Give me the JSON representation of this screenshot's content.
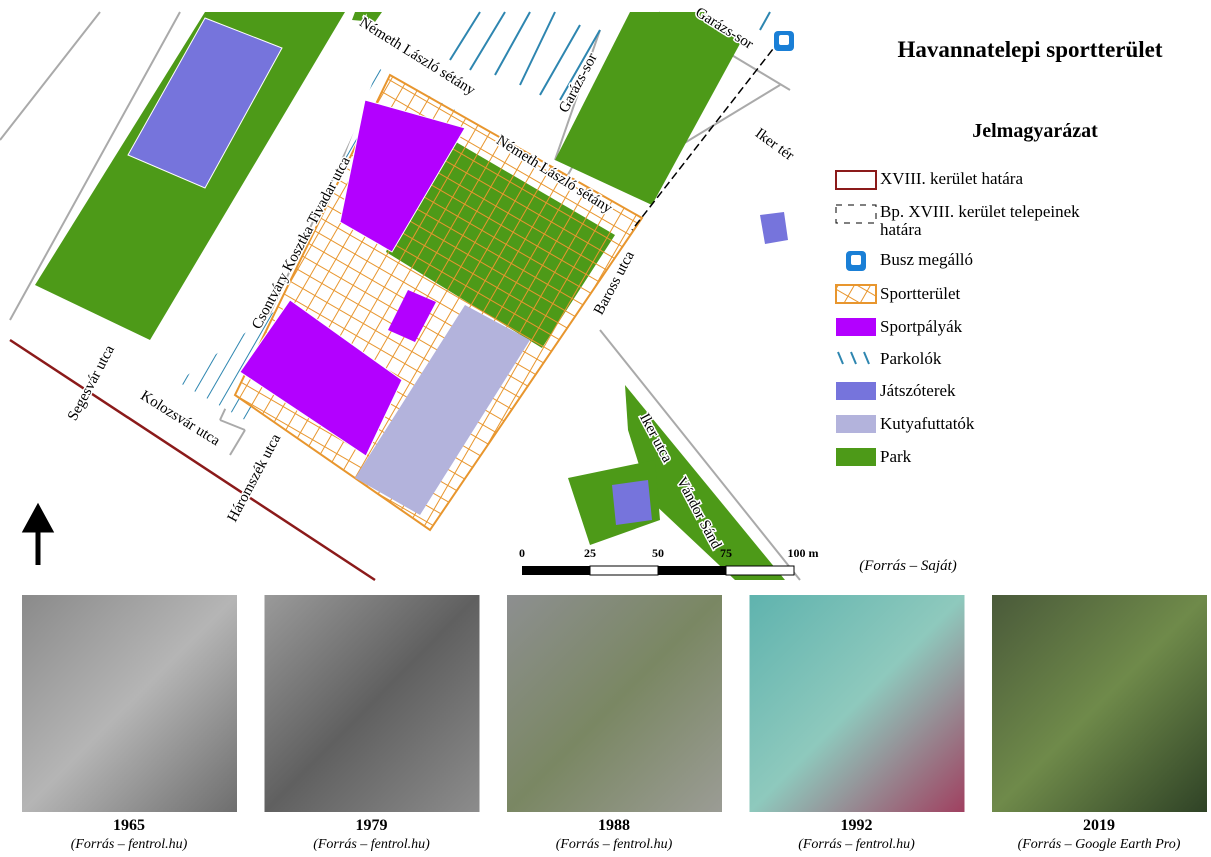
{
  "title": "Havannatelepi sportterület",
  "legend": {
    "title": "Jelmagyarázat",
    "items": [
      {
        "label": "XVIII. kerület határa"
      },
      {
        "label": "Bp. XVIII. kerület telepeinek határa"
      },
      {
        "label": "Busz megálló"
      },
      {
        "label": "Sportterület"
      },
      {
        "label": "Sportpályák"
      },
      {
        "label": "Parkolók"
      },
      {
        "label": "Játszóterek"
      },
      {
        "label": "Kutyafuttatók"
      },
      {
        "label": "Park"
      }
    ]
  },
  "streets": [
    "Németh László sétány",
    "Németh László sétány",
    "Garázs-sor",
    "Garázs-sor",
    "Iker tér",
    "Csontváry Kosztka Tivadar utca",
    "Baross utca",
    "Segesvár utca",
    "Kolozsvár utca",
    "Háromszék utca",
    "Iker utca",
    "Vándor Sánd"
  ],
  "scale_bar": {
    "labels": [
      "0",
      "25",
      "50",
      "75",
      "100 m"
    ]
  },
  "map_source": "(Forrás – Saját)",
  "photos": [
    {
      "year": "1965",
      "source": "(Forrás – fentrol.hu)"
    },
    {
      "year": "1979",
      "source": "(Forrás – fentrol.hu)"
    },
    {
      "year": "1988",
      "source": "(Forrás – fentrol.hu)"
    },
    {
      "year": "1992",
      "source": "(Forrás – fentrol.hu)"
    },
    {
      "year": "2019",
      "source": "(Forrás – Google Earth Pro)"
    }
  ]
}
